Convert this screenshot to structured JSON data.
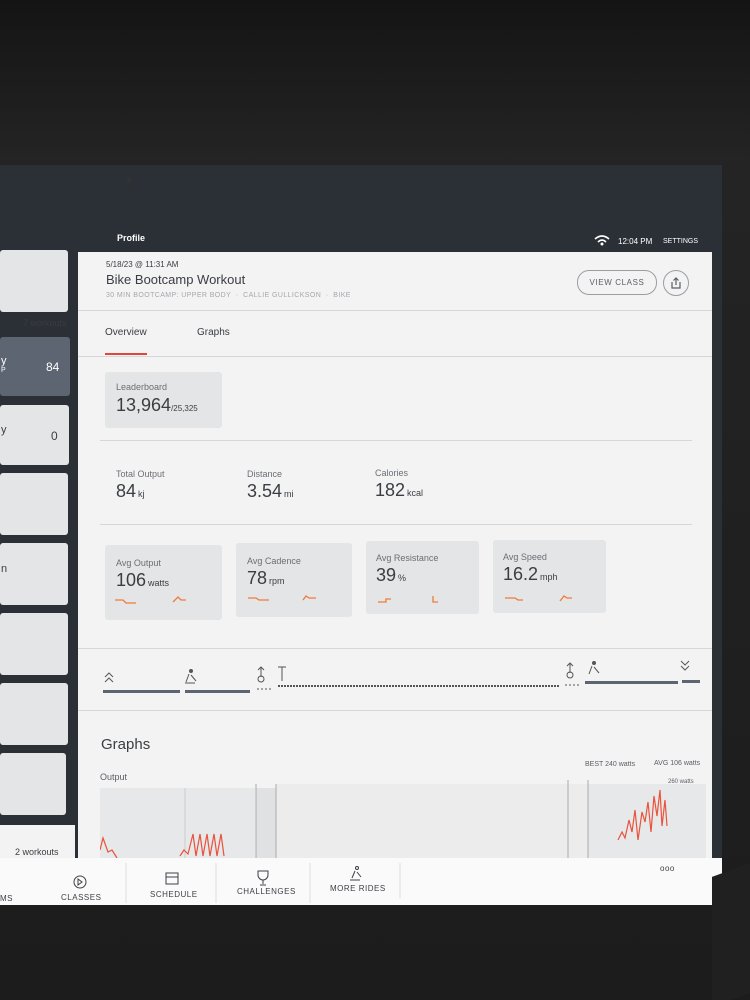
{
  "header": {
    "title": "Profile",
    "time": "12:04 PM",
    "settings": "SETTINGS"
  },
  "sidebar": {
    "items": [
      {
        "label": "7 workouts"
      },
      {
        "label_fragment": "y",
        "sub_fragment": "P",
        "value": "84"
      },
      {
        "label_fragment": "y",
        "value": "0"
      },
      {
        "label_fragment": "n"
      },
      {
        "label": "2 workouts"
      }
    ]
  },
  "workout": {
    "date": "5/18/23 @ 11:31 AM",
    "title": "Bike Bootcamp Workout",
    "details": [
      "30 MIN BOOTCAMP: UPPER BODY",
      "CALLIE GULLICKSON",
      "BIKE"
    ],
    "button": "VIEW CLASS"
  },
  "tabs": [
    "Overview",
    "Graphs"
  ],
  "leaderboard": {
    "label": "Leaderboard",
    "rank": "13,964",
    "total": "/25,325"
  },
  "totals": [
    {
      "label": "Total Output",
      "value": "84",
      "unit": "kj"
    },
    {
      "label": "Distance",
      "value": "3.54",
      "unit": "mi"
    },
    {
      "label": "Calories",
      "value": "182",
      "unit": "kcal"
    }
  ],
  "averages": [
    {
      "label": "Avg Output",
      "value": "106",
      "unit": "watts"
    },
    {
      "label": "Avg Cadence",
      "value": "78",
      "unit": "rpm"
    },
    {
      "label": "Avg Resistance",
      "value": "39",
      "unit": "%"
    },
    {
      "label": "Avg Speed",
      "value": "16.2",
      "unit": "mph"
    }
  ],
  "graphs": {
    "title": "Graphs",
    "output_label": "Output",
    "best": "BEST 240 watts",
    "avg": "AVG 106 watts",
    "max_label": "260 watts"
  },
  "nav": {
    "fragment": "MS",
    "items": [
      "CLASSES",
      "SCHEDULE",
      "CHALLENGES",
      "MORE RIDES"
    ],
    "more": "ooo"
  }
}
